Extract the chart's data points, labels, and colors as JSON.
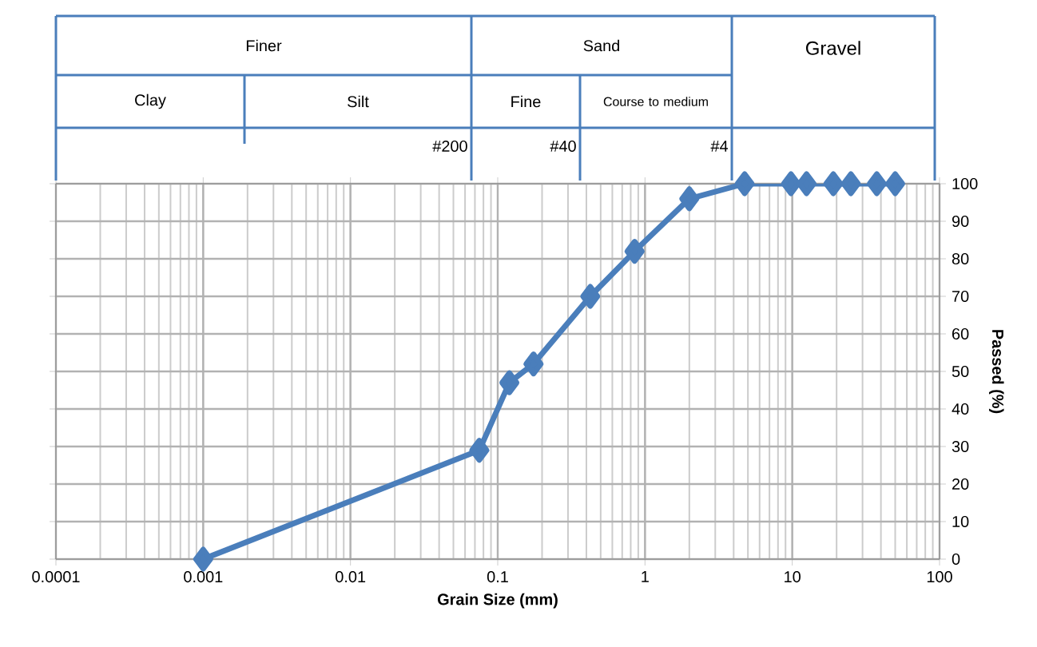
{
  "chart_data": {
    "type": "line",
    "xlabel": "Grain Size (mm)",
    "ylabel": "Passed (%)",
    "log": "x",
    "grid": true,
    "marker": "diamond",
    "line_style": "solid",
    "xlim": [
      0.0001,
      100
    ],
    "xticks": [
      0.0001,
      0.001,
      0.01,
      0.1,
      1,
      10,
      100
    ],
    "ylim": [
      0,
      100
    ],
    "yticks": [
      0,
      10,
      20,
      30,
      40,
      50,
      60,
      70,
      80,
      90,
      100
    ],
    "x": [
      0.001,
      0.075,
      0.12,
      0.175,
      0.425,
      0.85,
      2,
      4.75,
      9.8,
      12.5,
      19,
      25,
      37.5,
      50
    ],
    "series": [
      {
        "color": "#4a7ebb",
        "values": [
          0,
          29,
          47,
          52,
          70,
          82,
          96,
          100,
          100,
          100,
          100,
          100,
          100,
          100
        ]
      }
    ],
    "annotations": [
      "Finer",
      "Sand",
      "Gravel",
      "Clay",
      "Silt",
      "Fine",
      "Course to medium",
      "#200",
      "#40",
      "#4"
    ]
  }
}
